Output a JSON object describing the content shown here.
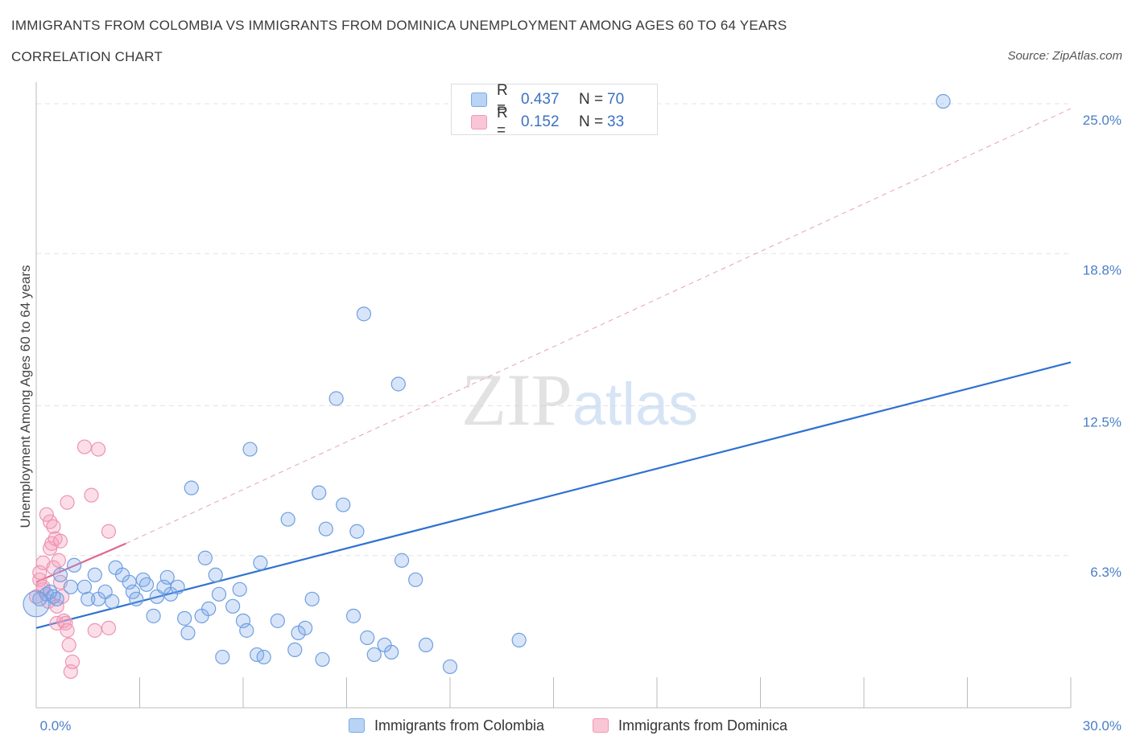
{
  "header": {
    "title": "IMMIGRANTS FROM COLOMBIA VS IMMIGRANTS FROM DOMINICA UNEMPLOYMENT AMONG AGES 60 TO 64 YEARS",
    "subtitle": "CORRELATION CHART",
    "source": "Source: ZipAtlas.com"
  },
  "watermark": "ZIPatlas",
  "legend": {
    "colombia": {
      "r_label": "R =",
      "r_value": "0.437",
      "n_label": "N =",
      "n_value": "70"
    },
    "dominica": {
      "r_label": "R =",
      "r_value": "0.152",
      "n_label": "N =",
      "n_value": "33"
    }
  },
  "chart_data": {
    "type": "scatter",
    "title": "IMMIGRANTS FROM COLOMBIA VS IMMIGRANTS FROM DOMINICA UNEMPLOYMENT AMONG AGES 60 TO 64 YEARS",
    "subtitle": "CORRELATION CHART",
    "xlabel": "",
    "ylabel": "Unemployment Among Ages 60 to 64 years",
    "xlim": [
      0,
      30
    ],
    "ylim": [
      0,
      25.7
    ],
    "x_tick_labels": [
      "0.0%",
      "30.0%"
    ],
    "y_ticks": [
      6.3,
      12.5,
      18.8,
      25.0
    ],
    "y_tick_labels": [
      "6.3%",
      "12.5%",
      "18.8%",
      "25.0%"
    ],
    "grid": true,
    "colors": {
      "colombia": "#6fa3e8",
      "dominica": "#f19bb6",
      "colombia_line": "#2f72d0",
      "dominica_line": "#e0668f"
    },
    "series": [
      {
        "name": "Immigrants from Colombia",
        "trend": {
          "x": [
            0,
            30
          ],
          "y": [
            3.3,
            14.3
          ],
          "style": "solid"
        },
        "points": [
          [
            0.1,
            4.5
          ],
          [
            0.3,
            4.7
          ],
          [
            0.4,
            4.8
          ],
          [
            0.5,
            4.6
          ],
          [
            0.6,
            4.5
          ],
          [
            0.7,
            5.5
          ],
          [
            1.0,
            5.0
          ],
          [
            1.1,
            5.9
          ],
          [
            1.4,
            5.0
          ],
          [
            1.5,
            4.5
          ],
          [
            1.7,
            5.5
          ],
          [
            1.8,
            4.5
          ],
          [
            2.0,
            4.8
          ],
          [
            2.2,
            4.4
          ],
          [
            2.3,
            5.8
          ],
          [
            2.5,
            5.5
          ],
          [
            2.7,
            5.2
          ],
          [
            2.8,
            4.8
          ],
          [
            2.9,
            4.5
          ],
          [
            3.1,
            5.3
          ],
          [
            3.2,
            5.1
          ],
          [
            3.4,
            3.8
          ],
          [
            3.5,
            4.6
          ],
          [
            3.7,
            5.0
          ],
          [
            3.8,
            5.4
          ],
          [
            3.9,
            4.7
          ],
          [
            4.1,
            5.0
          ],
          [
            4.3,
            3.7
          ],
          [
            4.4,
            3.1
          ],
          [
            4.5,
            9.1
          ],
          [
            4.8,
            3.8
          ],
          [
            4.9,
            6.2
          ],
          [
            5.0,
            4.1
          ],
          [
            5.2,
            5.5
          ],
          [
            5.3,
            4.7
          ],
          [
            5.4,
            2.1
          ],
          [
            5.7,
            4.2
          ],
          [
            5.9,
            4.9
          ],
          [
            6.0,
            3.6
          ],
          [
            6.1,
            3.2
          ],
          [
            6.2,
            10.7
          ],
          [
            6.4,
            2.2
          ],
          [
            6.5,
            6.0
          ],
          [
            6.6,
            2.1
          ],
          [
            7.0,
            3.6
          ],
          [
            7.3,
            7.8
          ],
          [
            7.5,
            2.4
          ],
          [
            7.6,
            3.1
          ],
          [
            7.8,
            3.3
          ],
          [
            8.0,
            4.5
          ],
          [
            8.2,
            8.9
          ],
          [
            8.3,
            2.0
          ],
          [
            8.4,
            7.4
          ],
          [
            8.7,
            12.8
          ],
          [
            8.9,
            8.4
          ],
          [
            9.2,
            3.8
          ],
          [
            9.3,
            7.3
          ],
          [
            9.5,
            16.3
          ],
          [
            9.6,
            2.9
          ],
          [
            9.8,
            2.2
          ],
          [
            10.1,
            2.6
          ],
          [
            10.3,
            2.3
          ],
          [
            10.5,
            13.4
          ],
          [
            10.6,
            6.1
          ],
          [
            11.0,
            5.3
          ],
          [
            11.3,
            2.6
          ],
          [
            12.0,
            1.7
          ],
          [
            14.0,
            2.8
          ],
          [
            26.3,
            25.1
          ],
          [
            0.0,
            4.3
          ]
        ]
      },
      {
        "name": "Immigrants from Dominica",
        "trend": {
          "x": [
            0,
            2.6
          ],
          "y": [
            5.2,
            6.8
          ],
          "style": "solid",
          "extension": {
            "x": [
              2.6,
              30
            ],
            "y": [
              6.8,
              24.8
            ],
            "style": "dashed"
          }
        },
        "points": [
          [
            0.0,
            4.6
          ],
          [
            0.1,
            5.3
          ],
          [
            0.1,
            5.6
          ],
          [
            0.2,
            6.0
          ],
          [
            0.2,
            4.9
          ],
          [
            0.3,
            8.0
          ],
          [
            0.35,
            4.4
          ],
          [
            0.4,
            6.6
          ],
          [
            0.4,
            7.7
          ],
          [
            0.45,
            6.8
          ],
          [
            0.5,
            5.8
          ],
          [
            0.5,
            7.5
          ],
          [
            0.55,
            7.0
          ],
          [
            0.6,
            4.2
          ],
          [
            0.6,
            3.5
          ],
          [
            0.65,
            6.1
          ],
          [
            0.7,
            5.2
          ],
          [
            0.7,
            6.9
          ],
          [
            0.75,
            4.6
          ],
          [
            0.8,
            3.6
          ],
          [
            0.85,
            3.5
          ],
          [
            0.9,
            8.5
          ],
          [
            0.9,
            3.2
          ],
          [
            0.95,
            2.6
          ],
          [
            1.0,
            1.5
          ],
          [
            1.05,
            1.9
          ],
          [
            1.4,
            10.8
          ],
          [
            1.6,
            8.8
          ],
          [
            1.7,
            3.2
          ],
          [
            1.8,
            10.7
          ],
          [
            2.1,
            3.3
          ],
          [
            2.1,
            7.3
          ],
          [
            0.2,
            5.0
          ]
        ]
      }
    ]
  },
  "bottom_legend": {
    "colombia_label": "Immigrants from Colombia",
    "dominica_label": "Immigrants from Dominica"
  }
}
